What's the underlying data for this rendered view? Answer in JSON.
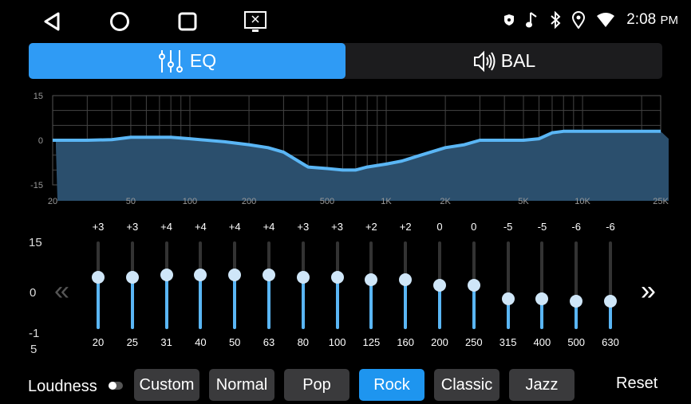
{
  "status": {
    "time": "2:08",
    "ampm": "PM",
    "icons": [
      "shield-icon",
      "music-note-icon",
      "bluetooth-icon",
      "location-icon",
      "wifi-icon"
    ]
  },
  "nav": {
    "icons": [
      "back-icon",
      "home-icon",
      "recents-icon",
      "screen-off-icon"
    ]
  },
  "tabs": [
    {
      "label": "EQ",
      "icon": "equalizer-sliders-icon",
      "active": true
    },
    {
      "label": "BAL",
      "icon": "speaker-icon",
      "active": false
    }
  ],
  "accent": "#2f9bf5",
  "chart_data": {
    "type": "area",
    "x_scale": "log",
    "xlim": [
      20,
      25000
    ],
    "ylim": [
      -15,
      15
    ],
    "grid": true,
    "x_ticks": [
      "20",
      "50",
      "100",
      "200",
      "500",
      "1K",
      "2K",
      "5K",
      "10K",
      "25K"
    ],
    "y_ticks": [
      "15",
      "0",
      "-15"
    ],
    "x": [
      20,
      30,
      40,
      50,
      60,
      80,
      100,
      150,
      200,
      250,
      300,
      400,
      500,
      600,
      700,
      800,
      1000,
      1200,
      1500,
      2000,
      2500,
      3000,
      4000,
      5000,
      6000,
      7000,
      8000,
      10000,
      25000
    ],
    "y": [
      0,
      0,
      0.2,
      1,
      1,
      1,
      0.5,
      -0.5,
      -1.5,
      -2.5,
      -4,
      -9,
      -9.5,
      -10,
      -10,
      -9,
      -8,
      -7,
      -5,
      -2.5,
      -1.5,
      0,
      0,
      0,
      0.5,
      2.5,
      3,
      3,
      3
    ]
  },
  "eq": {
    "axis": {
      "top": "15",
      "mid": "0",
      "bottom_line1": "-1",
      "bottom_line2": "5"
    },
    "bands": [
      {
        "freq": "20",
        "gain": "+3"
      },
      {
        "freq": "25",
        "gain": "+3"
      },
      {
        "freq": "31",
        "gain": "+4"
      },
      {
        "freq": "40",
        "gain": "+4"
      },
      {
        "freq": "50",
        "gain": "+4"
      },
      {
        "freq": "63",
        "gain": "+4"
      },
      {
        "freq": "80",
        "gain": "+3"
      },
      {
        "freq": "100",
        "gain": "+3"
      },
      {
        "freq": "125",
        "gain": "+2"
      },
      {
        "freq": "160",
        "gain": "+2"
      },
      {
        "freq": "200",
        "gain": "0"
      },
      {
        "freq": "250",
        "gain": "0"
      },
      {
        "freq": "315",
        "gain": "-5"
      },
      {
        "freq": "400",
        "gain": "-5"
      },
      {
        "freq": "500",
        "gain": "-6"
      },
      {
        "freq": "630",
        "gain": "-6"
      }
    ],
    "prev": "«",
    "next": "»"
  },
  "bottom": {
    "loudness": "Loudness",
    "loudness_on": false,
    "presets": [
      "Custom",
      "Normal",
      "Pop",
      "Rock",
      "Classic",
      "Jazz"
    ],
    "selected": "Rock",
    "reset": "Reset"
  }
}
